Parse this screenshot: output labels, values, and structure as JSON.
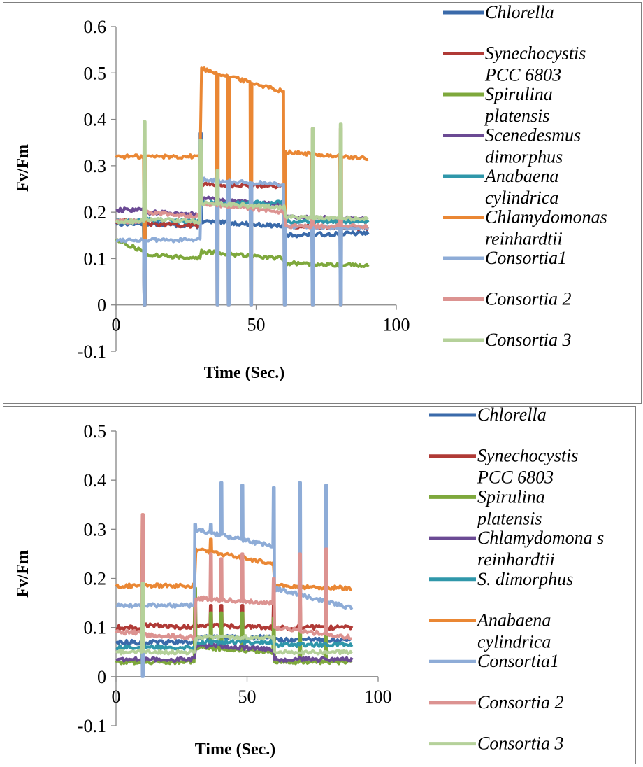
{
  "chart_data": [
    {
      "type": "line",
      "title": "",
      "xlabel": "Time (Sec.)",
      "ylabel": "Fv/Fm",
      "xlim": [
        0,
        100
      ],
      "ylim": [
        -0.1,
        0.6
      ],
      "xticks": [
        "0",
        "50",
        "100"
      ],
      "yticks": [
        "-0.1",
        "0",
        "0.1",
        "0.2",
        "0.3",
        "0.4",
        "0.5",
        "0.6"
      ],
      "x_range": [
        0,
        90
      ],
      "pulse_times": [
        10,
        30,
        36,
        40,
        48,
        60,
        70,
        80
      ],
      "legend_position": "right",
      "series": [
        {
          "name": "Chlorella",
          "color": "#3a6aaa",
          "segments": [
            [
              0,
              10,
              0.175,
              0.175
            ],
            [
              10,
              30,
              0.175,
              0.17
            ],
            [
              30,
              60,
              0.18,
              0.17
            ],
            [
              60,
              90,
              0.15,
              0.155
            ]
          ],
          "spikes": [
            [
              10,
              0.0
            ],
            [
              30,
              0.37
            ]
          ]
        },
        {
          "name": "Synechocystis PCC 6803",
          "color": "#b03a36",
          "segments": [
            [
              0,
              10,
              0.18,
              0.18
            ],
            [
              10,
              30,
              0.175,
              0.17
            ],
            [
              30,
              60,
              0.26,
              0.255
            ],
            [
              60,
              90,
              0.17,
              0.165
            ]
          ],
          "spikes": [
            [
              10,
              0.0
            ],
            [
              30,
              0.28
            ]
          ]
        },
        {
          "name": "Spirulina platensis",
          "color": "#7ea83c",
          "segments": [
            [
              0,
              10,
              0.14,
              0.115
            ],
            [
              10,
              30,
              0.11,
              0.1
            ],
            [
              30,
              60,
              0.115,
              0.1
            ],
            [
              60,
              90,
              0.09,
              0.085
            ]
          ],
          "spikes": []
        },
        {
          "name": "Scenedesmus dimorphus",
          "color": "#6b4a94",
          "segments": [
            [
              0,
              10,
              0.205,
              0.205
            ],
            [
              10,
              30,
              0.2,
              0.195
            ],
            [
              30,
              60,
              0.23,
              0.215
            ],
            [
              60,
              90,
              0.19,
              0.185
            ]
          ],
          "spikes": [
            [
              10,
              0.0
            ]
          ]
        },
        {
          "name": "Anabaena cylindrica",
          "color": "#2f97aa",
          "segments": [
            [
              0,
              10,
              0.18,
              0.18
            ],
            [
              10,
              30,
              0.185,
              0.18
            ],
            [
              30,
              60,
              0.22,
              0.22
            ],
            [
              60,
              90,
              0.18,
              0.18
            ]
          ],
          "spikes": [
            [
              10,
              0.0
            ]
          ]
        },
        {
          "name": "Chlamydomonas reinhardtii",
          "color": "#ea8734",
          "segments": [
            [
              0,
              10,
              0.32,
              0.32
            ],
            [
              10,
              30,
              0.32,
              0.32
            ],
            [
              30,
              60,
              0.51,
              0.46
            ],
            [
              60,
              90,
              0.33,
              0.315
            ]
          ],
          "spikes": [
            [
              10,
              0.0
            ],
            [
              36,
              0.0
            ],
            [
              40,
              0.0
            ],
            [
              48,
              0.0
            ],
            [
              60,
              0.0
            ],
            [
              70,
              0.0
            ],
            [
              80,
              0.0
            ]
          ]
        },
        {
          "name": "Consortia1",
          "color": "#8eacd7",
          "segments": [
            [
              0,
              10,
              0.14,
              0.14
            ],
            [
              10,
              30,
              0.14,
              0.14
            ],
            [
              30,
              60,
              0.27,
              0.26
            ],
            [
              60,
              90,
              0.17,
              0.165
            ]
          ],
          "spikes": [
            [
              10,
              0.0
            ],
            [
              36,
              0.0
            ],
            [
              40,
              0.0
            ],
            [
              48,
              0.0
            ],
            [
              60,
              0.0
            ],
            [
              70,
              0.0
            ],
            [
              80,
              0.0
            ]
          ]
        },
        {
          "name": "Consortia 2",
          "color": "#dc9391",
          "segments": [
            [
              0,
              10,
              0.18,
              0.18
            ],
            [
              10,
              30,
              0.2,
              0.19
            ],
            [
              30,
              60,
              0.22,
              0.2
            ],
            [
              60,
              90,
              0.17,
              0.17
            ]
          ],
          "spikes": [
            [
              10,
              0.25
            ],
            [
              30,
              0.33
            ],
            [
              70,
              0.38
            ],
            [
              80,
              0.38
            ]
          ]
        },
        {
          "name": "Consortia 3",
          "color": "#b5d19a",
          "segments": [
            [
              0,
              10,
              0.18,
              0.18
            ],
            [
              10,
              30,
              0.185,
              0.18
            ],
            [
              30,
              60,
              0.22,
              0.21
            ],
            [
              60,
              90,
              0.19,
              0.185
            ]
          ],
          "spikes": [
            [
              10,
              0.395
            ],
            [
              30,
              0.355
            ],
            [
              36,
              0.29
            ],
            [
              70,
              0.38
            ],
            [
              80,
              0.39
            ]
          ]
        }
      ]
    },
    {
      "type": "line",
      "title": "",
      "xlabel": "Time (Sec.)",
      "ylabel": "Fv/Fm",
      "xlim": [
        0,
        100
      ],
      "ylim": [
        -0.1,
        0.5
      ],
      "xticks": [
        "0",
        "50",
        "100"
      ],
      "yticks": [
        "-0.1",
        "0",
        "0.1",
        "0.2",
        "0.3",
        "0.4",
        "0.5"
      ],
      "x_range": [
        0,
        90
      ],
      "pulse_times": [
        10,
        30,
        36,
        40,
        48,
        60,
        70,
        80
      ],
      "legend_position": "right",
      "series": [
        {
          "name": "Chlorella",
          "color": "#3a6aaa",
          "segments": [
            [
              0,
              10,
              0.07,
              0.07
            ],
            [
              10,
              30,
              0.07,
              0.07
            ],
            [
              30,
              60,
              0.08,
              0.08
            ],
            [
              60,
              90,
              0.075,
              0.075
            ]
          ],
          "spikes": []
        },
        {
          "name": "Synechocystis PCC 6803",
          "color": "#b03a36",
          "segments": [
            [
              0,
              10,
              0.1,
              0.1
            ],
            [
              10,
              30,
              0.105,
              0.1
            ],
            [
              30,
              60,
              0.105,
              0.1
            ],
            [
              60,
              90,
              0.1,
              0.1
            ]
          ],
          "spikes": [
            [
              30,
              0.15
            ],
            [
              36,
              0.145
            ],
            [
              40,
              0.145
            ],
            [
              48,
              0.145
            ],
            [
              60,
              0.145
            ],
            [
              70,
              0.15
            ],
            [
              80,
              0.15
            ]
          ]
        },
        {
          "name": "Spirulina platensis",
          "color": "#7ea83c",
          "segments": [
            [
              0,
              10,
              0.03,
              0.03
            ],
            [
              10,
              30,
              0.03,
              0.03
            ],
            [
              30,
              60,
              0.06,
              0.05
            ],
            [
              60,
              90,
              0.03,
              0.03
            ]
          ],
          "spikes": [
            [
              10,
              0.2
            ],
            [
              30,
              0.18
            ],
            [
              36,
              0.13
            ],
            [
              40,
              0.13
            ],
            [
              48,
              0.13
            ],
            [
              60,
              0.12
            ],
            [
              70,
              0.15
            ],
            [
              80,
              0.155
            ]
          ]
        },
        {
          "name": "Chlamydomona s reinhardtii",
          "color": "#6b4a94",
          "segments": [
            [
              0,
              10,
              0.035,
              0.035
            ],
            [
              10,
              30,
              0.035,
              0.035
            ],
            [
              30,
              60,
              0.065,
              0.055
            ],
            [
              60,
              90,
              0.035,
              0.035
            ]
          ],
          "spikes": []
        },
        {
          "name": "S. dimorphus",
          "color": "#2f97aa",
          "segments": [
            [
              0,
              10,
              0.06,
              0.06
            ],
            [
              10,
              30,
              0.06,
              0.06
            ],
            [
              30,
              60,
              0.07,
              0.07
            ],
            [
              60,
              90,
              0.065,
              0.065
            ]
          ],
          "spikes": []
        },
        {
          "name": "Anabaena cylindrica",
          "color": "#ea8734",
          "segments": [
            [
              0,
              10,
              0.185,
              0.185
            ],
            [
              10,
              30,
              0.185,
              0.185
            ],
            [
              30,
              60,
              0.26,
              0.23
            ],
            [
              60,
              90,
              0.185,
              0.18
            ]
          ],
          "spikes": [
            [
              10,
              0.33
            ],
            [
              36,
              0.28
            ],
            [
              40,
              0.25
            ],
            [
              48,
              0.24
            ]
          ]
        },
        {
          "name": "Consortia1",
          "color": "#8eacd7",
          "segments": [
            [
              0,
              10,
              0.145,
              0.145
            ],
            [
              10,
              30,
              0.145,
              0.145
            ],
            [
              30,
              60,
              0.3,
              0.265
            ],
            [
              60,
              90,
              0.18,
              0.14
            ]
          ],
          "spikes": [
            [
              10,
              0.0
            ],
            [
              30,
              0.31
            ],
            [
              36,
              0.31
            ],
            [
              40,
              0.395
            ],
            [
              48,
              0.39
            ],
            [
              60,
              0.385
            ],
            [
              70,
              0.395
            ],
            [
              80,
              0.39
            ]
          ]
        },
        {
          "name": "Consortia 2",
          "color": "#dc9391",
          "segments": [
            [
              0,
              10,
              0.09,
              0.09
            ],
            [
              10,
              30,
              0.085,
              0.08
            ],
            [
              30,
              60,
              0.16,
              0.15
            ],
            [
              60,
              90,
              0.1,
              0.08
            ]
          ],
          "spikes": [
            [
              10,
              0.33
            ],
            [
              36,
              0.25
            ],
            [
              40,
              0.24
            ],
            [
              48,
              0.25
            ],
            [
              60,
              0.2
            ],
            [
              70,
              0.25
            ],
            [
              80,
              0.26
            ]
          ]
        },
        {
          "name": "Consortia 3",
          "color": "#b5d19a",
          "segments": [
            [
              0,
              10,
              0.05,
              0.05
            ],
            [
              10,
              30,
              0.05,
              0.05
            ],
            [
              30,
              60,
              0.08,
              0.08
            ],
            [
              60,
              90,
              0.05,
              0.05
            ]
          ],
          "spikes": [
            [
              10,
              0.19
            ]
          ]
        }
      ]
    }
  ]
}
